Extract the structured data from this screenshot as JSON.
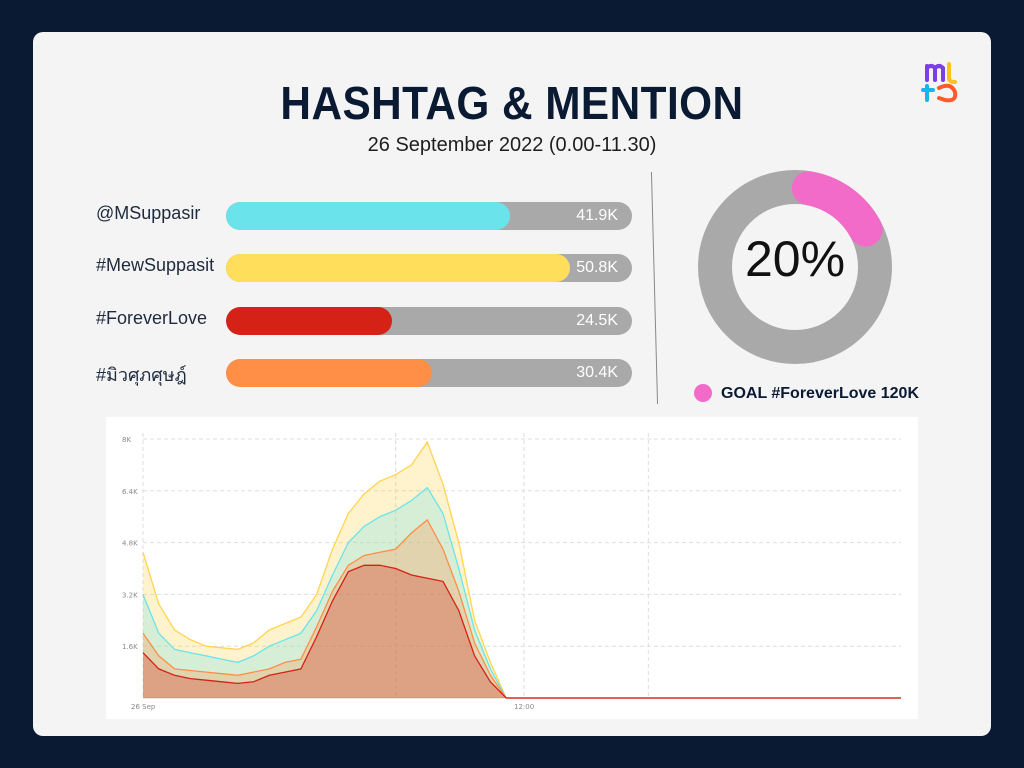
{
  "header": {
    "title": "HASHTAG & MENTION",
    "subtitle": "26 September 2022 (0.00-11.30)"
  },
  "goal": {
    "percent_label": "20%",
    "percent": 20,
    "label": "GOAL #ForeverLove 120K",
    "color": "#f26bc9",
    "track_color": "#a9a9a9"
  },
  "chart_data": [
    {
      "type": "bar",
      "orientation": "horizontal",
      "categories": [
        "@MSuppasir",
        "#MewSuppasit",
        "#ForeverLove",
        "#มิวศุภศุษฎ์"
      ],
      "values": [
        41.9,
        50.8,
        24.5,
        30.4
      ],
      "value_labels": [
        "41.9K",
        "50.8K",
        "24.5K",
        "30.4K"
      ],
      "colors": [
        "#6be3ea",
        "#ffde5c",
        "#d42217",
        "#ff8e47"
      ],
      "xlim": [
        0,
        60
      ]
    },
    {
      "type": "area",
      "stacked": false,
      "x_ticks": [
        "26 Sep",
        "12:00"
      ],
      "y_ticks": [
        "8K",
        "6.4K",
        "4.8K",
        "3.2K",
        "1.6K"
      ],
      "ylim": [
        0,
        8000
      ],
      "x": [
        0,
        0.5,
        1,
        1.5,
        2,
        2.5,
        3,
        3.5,
        4,
        4.5,
        5,
        5.5,
        6,
        6.5,
        7,
        7.5,
        8,
        8.5,
        9,
        9.5,
        10,
        10.5,
        11,
        11.5,
        12,
        14,
        16,
        18,
        20,
        22,
        24
      ],
      "series": [
        {
          "color": "#ffd54f",
          "values": [
            4500,
            2900,
            2100,
            1800,
            1600,
            1550,
            1500,
            1700,
            2100,
            2300,
            2500,
            3200,
            4600,
            5700,
            6300,
            6700,
            6900,
            7200,
            7900,
            6600,
            4800,
            2400,
            1100,
            0,
            0,
            0,
            0,
            0,
            0,
            0,
            0
          ]
        },
        {
          "color": "#6be3ea",
          "values": [
            3200,
            2000,
            1500,
            1400,
            1300,
            1200,
            1100,
            1300,
            1600,
            1800,
            2000,
            2700,
            3800,
            4800,
            5300,
            5600,
            5800,
            6100,
            6500,
            5700,
            4000,
            2100,
            900,
            0,
            0,
            0,
            0,
            0,
            0,
            0,
            0
          ]
        },
        {
          "color": "#ff8e47",
          "values": [
            2000,
            1300,
            900,
            850,
            800,
            750,
            700,
            800,
            900,
            1100,
            1200,
            2200,
            3300,
            4100,
            4400,
            4500,
            4600,
            5100,
            5500,
            4600,
            3300,
            1700,
            700,
            0,
            0,
            0,
            0,
            0,
            0,
            0,
            0
          ]
        },
        {
          "color": "#d42217",
          "values": [
            1400,
            900,
            700,
            600,
            550,
            500,
            450,
            500,
            700,
            800,
            900,
            1900,
            3000,
            3900,
            4100,
            4100,
            4000,
            3800,
            3700,
            3600,
            2700,
            1300,
            500,
            0,
            0,
            0,
            0,
            0,
            0,
            0,
            0
          ]
        }
      ]
    }
  ]
}
